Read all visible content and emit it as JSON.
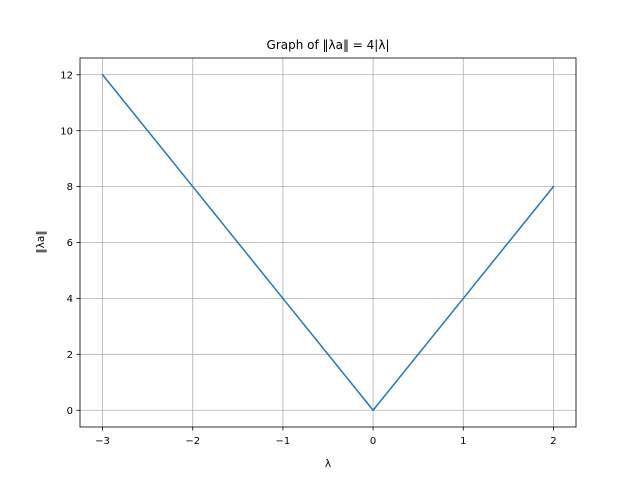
{
  "chart_data": {
    "type": "line",
    "title": "Graph of ‖λa‖ = 4|λ|",
    "xlabel": "λ",
    "ylabel": "‖λa‖",
    "xlim": [
      -3.25,
      2.25
    ],
    "ylim": [
      -0.6,
      12.6
    ],
    "xticks": [
      -3,
      -2,
      -1,
      0,
      1,
      2
    ],
    "xtick_labels": [
      "−3",
      "−2",
      "−1",
      "0",
      "1",
      "2"
    ],
    "yticks": [
      0,
      2,
      4,
      6,
      8,
      10,
      12
    ],
    "ytick_labels": [
      "0",
      "2",
      "4",
      "6",
      "8",
      "10",
      "12"
    ],
    "grid": true,
    "series": [
      {
        "color": "#1f77b4",
        "x": [
          -3,
          -2,
          -1,
          0,
          1,
          2
        ],
        "y": [
          12,
          8,
          4,
          0,
          4,
          8
        ]
      }
    ]
  }
}
